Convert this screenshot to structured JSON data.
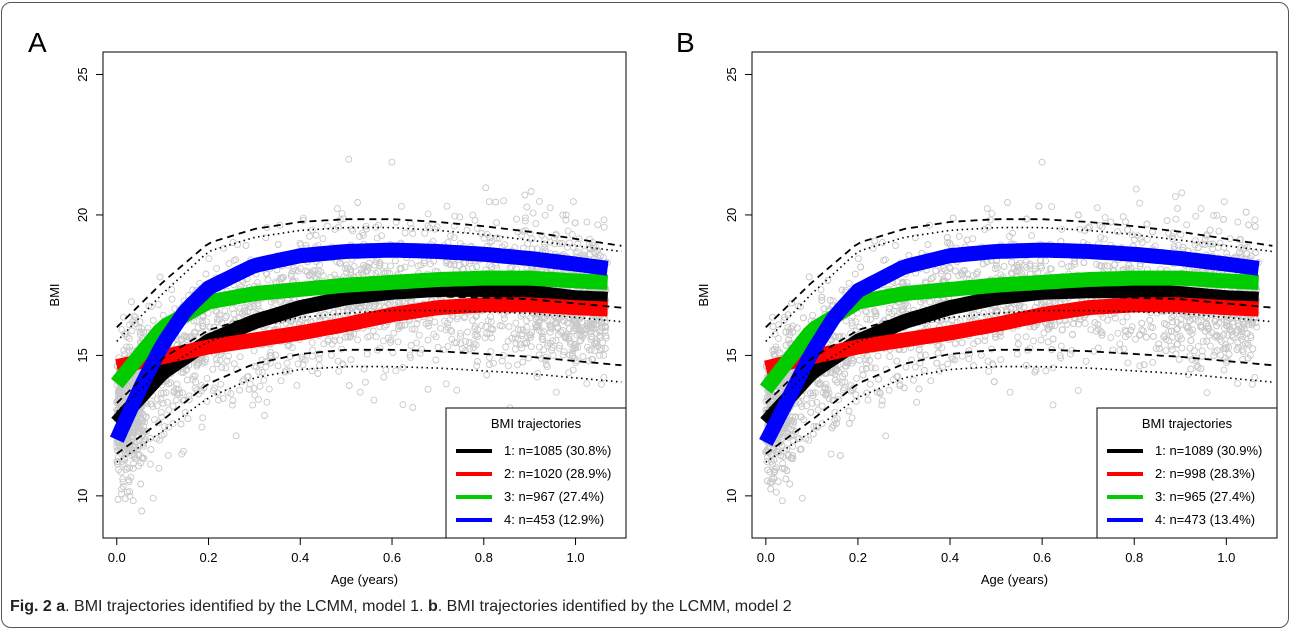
{
  "caption": {
    "fig_label": "Fig. 2",
    "a_label": "a",
    "a_text": ". BMI trajectories identified by the LCMM, model 1. ",
    "b_label": "b",
    "b_text": ". BMI trajectories identified by the LCMM, model 2"
  },
  "colors": {
    "scatter": "#c8c8c8",
    "class1": "#000000",
    "class2": "#ff0000",
    "class3": "#00cc00",
    "class4": "#0000ff"
  },
  "chart_data": [
    {
      "panel": "A",
      "type": "line",
      "xlabel": "Age (years)",
      "ylabel": "BMI",
      "xlim": [
        -0.03,
        1.11
      ],
      "ylim": [
        8.5,
        25.8
      ],
      "xticks": [
        "0.0",
        "0.2",
        "0.4",
        "0.6",
        "0.8",
        "1.0"
      ],
      "yticks": [
        "10",
        "15",
        "20",
        "25"
      ],
      "scatter": "individual BMI observations (grey open circles)",
      "legend_title": "BMI trajectories",
      "legend_position": "bottom-right",
      "series": [
        {
          "name": "1: n=1085 (30.8%)",
          "color": "#000000",
          "x": [
            0,
            0.1,
            0.2,
            0.3,
            0.4,
            0.5,
            0.6,
            0.7,
            0.8,
            0.9,
            1.0,
            1.07
          ],
          "y": [
            12.6,
            14.4,
            15.5,
            16.2,
            16.7,
            17.05,
            17.25,
            17.35,
            17.35,
            17.25,
            17.05,
            17.0
          ]
        },
        {
          "name": "2: n=1020 (28.9%)",
          "color": "#ff0000",
          "x": [
            0,
            0.1,
            0.2,
            0.3,
            0.4,
            0.5,
            0.6,
            0.7,
            0.8,
            0.9,
            1.0,
            1.07
          ],
          "y": [
            14.6,
            14.95,
            15.3,
            15.55,
            15.8,
            16.1,
            16.45,
            16.7,
            16.8,
            16.8,
            16.7,
            16.65
          ]
        },
        {
          "name": "3: n=967 (27.4%)",
          "color": "#00cc00",
          "x": [
            0,
            0.1,
            0.2,
            0.3,
            0.4,
            0.5,
            0.6,
            0.7,
            0.8,
            0.9,
            1.0,
            1.07
          ],
          "y": [
            14.0,
            16.0,
            16.9,
            17.2,
            17.35,
            17.5,
            17.6,
            17.7,
            17.75,
            17.75,
            17.65,
            17.6
          ]
        },
        {
          "name": "4: n=453 (12.9%)",
          "color": "#0000ff",
          "x": [
            0,
            0.05,
            0.1,
            0.15,
            0.2,
            0.3,
            0.4,
            0.5,
            0.6,
            0.7,
            0.8,
            0.9,
            1.0,
            1.07
          ],
          "y": [
            12.0,
            13.8,
            15.4,
            16.6,
            17.4,
            18.2,
            18.55,
            18.7,
            18.75,
            18.7,
            18.6,
            18.45,
            18.25,
            18.1
          ]
        },
        {
          "name": "",
          "color": "#000000",
          "style": "dashed",
          "x": [
            0,
            0.1,
            0.2,
            0.3,
            0.4,
            0.5,
            0.6,
            0.7,
            0.8,
            0.9,
            1.0,
            1.1
          ],
          "y": [
            16.0,
            17.6,
            19.0,
            19.5,
            19.75,
            19.85,
            19.85,
            19.75,
            19.6,
            19.4,
            19.15,
            18.9
          ]
        },
        {
          "name": "",
          "color": "#000000",
          "style": "dashed",
          "x": [
            0,
            0.1,
            0.2,
            0.3,
            0.4,
            0.5,
            0.6,
            0.7,
            0.8,
            0.9,
            1.0,
            1.1
          ],
          "y": [
            13.3,
            14.9,
            15.9,
            16.4,
            16.8,
            17.0,
            17.1,
            17.1,
            17.05,
            17.0,
            16.85,
            16.7
          ]
        },
        {
          "name": "",
          "color": "#000000",
          "style": "dashed",
          "x": [
            0,
            0.1,
            0.2,
            0.3,
            0.4,
            0.5,
            0.6,
            0.7,
            0.8,
            0.9,
            1.0,
            1.1
          ],
          "y": [
            11.5,
            12.7,
            14.0,
            14.7,
            15.05,
            15.2,
            15.2,
            15.15,
            15.05,
            14.95,
            14.8,
            14.65
          ]
        },
        {
          "name": "",
          "color": "#000000",
          "style": "dotted",
          "x": [
            0,
            0.1,
            0.2,
            0.3,
            0.4,
            0.5,
            0.6,
            0.7,
            0.8,
            0.9,
            1.0,
            1.1
          ],
          "y": [
            15.5,
            17.2,
            18.7,
            19.2,
            19.45,
            19.55,
            19.55,
            19.45,
            19.3,
            19.1,
            18.9,
            18.7
          ]
        },
        {
          "name": "",
          "color": "#000000",
          "style": "dotted",
          "x": [
            0,
            0.1,
            0.2,
            0.3,
            0.4,
            0.5,
            0.6,
            0.7,
            0.8,
            0.9,
            1.0,
            1.1
          ],
          "y": [
            13.0,
            14.5,
            15.5,
            16.0,
            16.35,
            16.5,
            16.6,
            16.6,
            16.55,
            16.5,
            16.35,
            16.2
          ]
        },
        {
          "name": "",
          "color": "#000000",
          "style": "dotted",
          "x": [
            0,
            0.1,
            0.2,
            0.3,
            0.4,
            0.5,
            0.6,
            0.7,
            0.8,
            0.9,
            1.0,
            1.1
          ],
          "y": [
            11.2,
            12.3,
            13.5,
            14.2,
            14.5,
            14.6,
            14.6,
            14.55,
            14.45,
            14.35,
            14.2,
            14.05
          ]
        }
      ]
    },
    {
      "panel": "B",
      "type": "line",
      "xlabel": "Age (years)",
      "ylabel": "BMI",
      "xlim": [
        -0.03,
        1.11
      ],
      "ylim": [
        8.5,
        25.8
      ],
      "xticks": [
        "0.0",
        "0.2",
        "0.4",
        "0.6",
        "0.8",
        "1.0"
      ],
      "yticks": [
        "10",
        "15",
        "20",
        "25"
      ],
      "scatter": "individual BMI observations (grey open circles)",
      "legend_title": "BMI trajectories",
      "legend_position": "bottom-right",
      "series": [
        {
          "name": "1: n=1089 (30.9%)",
          "color": "#000000",
          "x": [
            0,
            0.1,
            0.2,
            0.3,
            0.4,
            0.5,
            0.6,
            0.7,
            0.8,
            0.9,
            1.0,
            1.07
          ],
          "y": [
            12.6,
            14.4,
            15.5,
            16.2,
            16.7,
            17.05,
            17.25,
            17.3,
            17.3,
            17.2,
            17.05,
            17.0
          ]
        },
        {
          "name": "2: n=998 (28.3%)",
          "color": "#ff0000",
          "x": [
            0,
            0.1,
            0.2,
            0.3,
            0.4,
            0.5,
            0.6,
            0.7,
            0.8,
            0.9,
            1.0,
            1.07
          ],
          "y": [
            14.55,
            14.95,
            15.3,
            15.55,
            15.8,
            16.1,
            16.45,
            16.7,
            16.8,
            16.8,
            16.7,
            16.65
          ]
        },
        {
          "name": "3: n=965 (27.4%)",
          "color": "#00cc00",
          "x": [
            0,
            0.1,
            0.2,
            0.3,
            0.4,
            0.5,
            0.6,
            0.7,
            0.8,
            0.9,
            1.0,
            1.07
          ],
          "y": [
            13.8,
            15.9,
            16.9,
            17.2,
            17.35,
            17.5,
            17.6,
            17.7,
            17.75,
            17.75,
            17.65,
            17.6
          ]
        },
        {
          "name": "4: n=473 (13.4%)",
          "color": "#0000ff",
          "x": [
            0,
            0.05,
            0.1,
            0.15,
            0.2,
            0.3,
            0.4,
            0.5,
            0.6,
            0.7,
            0.8,
            0.9,
            1.0,
            1.07
          ],
          "y": [
            11.9,
            13.5,
            15.1,
            16.4,
            17.3,
            18.15,
            18.55,
            18.7,
            18.75,
            18.7,
            18.6,
            18.45,
            18.25,
            18.1
          ]
        },
        {
          "name": "",
          "color": "#000000",
          "style": "dashed",
          "x": [
            0,
            0.1,
            0.2,
            0.3,
            0.4,
            0.5,
            0.6,
            0.7,
            0.8,
            0.9,
            1.0,
            1.1
          ],
          "y": [
            16.0,
            17.6,
            19.0,
            19.5,
            19.75,
            19.85,
            19.85,
            19.75,
            19.6,
            19.4,
            19.15,
            18.9
          ]
        },
        {
          "name": "",
          "color": "#000000",
          "style": "dashed",
          "x": [
            0,
            0.1,
            0.2,
            0.3,
            0.4,
            0.5,
            0.6,
            0.7,
            0.8,
            0.9,
            1.0,
            1.1
          ],
          "y": [
            13.3,
            14.9,
            15.9,
            16.4,
            16.8,
            17.0,
            17.1,
            17.1,
            17.05,
            17.0,
            16.85,
            16.7
          ]
        },
        {
          "name": "",
          "color": "#000000",
          "style": "dashed",
          "x": [
            0,
            0.1,
            0.2,
            0.3,
            0.4,
            0.5,
            0.6,
            0.7,
            0.8,
            0.9,
            1.0,
            1.1
          ],
          "y": [
            11.5,
            12.7,
            14.0,
            14.7,
            15.05,
            15.2,
            15.2,
            15.15,
            15.05,
            14.95,
            14.8,
            14.65
          ]
        },
        {
          "name": "",
          "color": "#000000",
          "style": "dotted",
          "x": [
            0,
            0.1,
            0.2,
            0.3,
            0.4,
            0.5,
            0.6,
            0.7,
            0.8,
            0.9,
            1.0,
            1.1
          ],
          "y": [
            15.5,
            17.2,
            18.7,
            19.2,
            19.45,
            19.55,
            19.55,
            19.45,
            19.3,
            19.1,
            18.9,
            18.7
          ]
        },
        {
          "name": "",
          "color": "#000000",
          "style": "dotted",
          "x": [
            0,
            0.1,
            0.2,
            0.3,
            0.4,
            0.5,
            0.6,
            0.7,
            0.8,
            0.9,
            1.0,
            1.1
          ],
          "y": [
            13.0,
            14.5,
            15.5,
            16.0,
            16.35,
            16.5,
            16.6,
            16.6,
            16.55,
            16.5,
            16.35,
            16.2
          ]
        },
        {
          "name": "",
          "color": "#000000",
          "style": "dotted",
          "x": [
            0,
            0.1,
            0.2,
            0.3,
            0.4,
            0.5,
            0.6,
            0.7,
            0.8,
            0.9,
            1.0,
            1.1
          ],
          "y": [
            11.2,
            12.3,
            13.5,
            14.2,
            14.5,
            14.6,
            14.6,
            14.55,
            14.45,
            14.35,
            14.2,
            14.05
          ]
        }
      ]
    }
  ]
}
